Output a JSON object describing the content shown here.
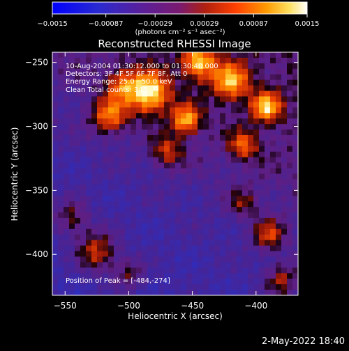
{
  "chart_data": {
    "type": "heatmap",
    "title": "Reconstructed RHESSI Image",
    "xlabel": "Heliocentric X (arcsec)",
    "ylabel": "Heliocentric Y (arcsec)",
    "xlim": [
      -560,
      -367
    ],
    "ylim": [
      -432,
      -242
    ],
    "x_ticks": [
      -550,
      -500,
      -450,
      -400
    ],
    "y_ticks": [
      -250,
      -300,
      -350,
      -400
    ],
    "x_tick_labels": [
      "−550",
      "−500",
      "−450",
      "−400"
    ],
    "y_tick_labels": [
      "−250",
      "−300",
      "−350",
      "−400"
    ],
    "colorbar": {
      "range": [
        -0.0015,
        0.0015
      ],
      "ticks": [
        -0.0015,
        -0.00087,
        -0.00029,
        0.00029,
        0.00087,
        0.0015
      ],
      "tick_labels": [
        "−0.0015",
        "−0.00087",
        "−0.00029",
        "0.00029",
        "0.00087",
        "0.0015"
      ],
      "units_label": "(photons cm⁻² s⁻¹ asec⁻²)",
      "colors": [
        "#0000ff",
        "#3030c0",
        "#5a1f9a",
        "#7a1a70",
        "#a82010",
        "#e04000",
        "#ff8a00",
        "#ffd030",
        "#ffffff"
      ]
    },
    "annotations": [
      "10-Aug-2004 01:30:12.000 to 01:30:40.000",
      "Detectors: 3F 4F 5F 6F 7F 8F, Att 0",
      "Energy Range: 25.0 - 50.0 keV",
      "Clean     Total counts: 345."
    ],
    "peak_label": "Position of Peak = [-484,-274]",
    "peak": {
      "x": -484,
      "y": -274
    },
    "footer_timestamp": "2-May-2022 18:40"
  }
}
